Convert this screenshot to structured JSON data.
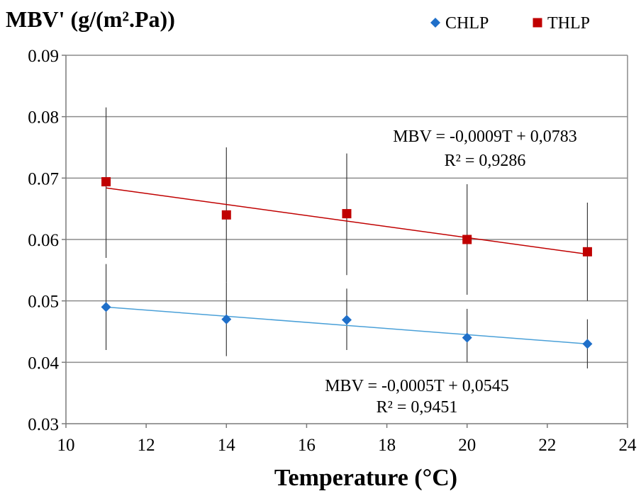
{
  "chart_data": {
    "type": "scatter",
    "ylabel": "MBV' (g/(m².Pa))",
    "xlabel": "Temperature (°C)",
    "xlim": [
      10,
      24
    ],
    "ylim": [
      0.03,
      0.09
    ],
    "x_ticks": [
      "10",
      "12",
      "14",
      "16",
      "18",
      "20",
      "22",
      "24"
    ],
    "y_ticks": [
      "0.03",
      "0.04",
      "0.05",
      "0.06",
      "0.07",
      "0.08",
      "0.09"
    ],
    "grid": "horizontal",
    "legend_position": "top-right",
    "series": [
      {
        "name": "CHLP",
        "marker": "diamond",
        "color": "#1f6fc9",
        "points": [
          {
            "x": 11,
            "y": 0.049,
            "err_low": 0.042,
            "err_high": 0.056
          },
          {
            "x": 14,
            "y": 0.047,
            "err_low": 0.041,
            "err_high": 0.053
          },
          {
            "x": 17,
            "y": 0.0469,
            "err_low": 0.042,
            "err_high": 0.052
          },
          {
            "x": 20,
            "y": 0.044,
            "err_low": 0.04,
            "err_high": 0.0487
          },
          {
            "x": 23,
            "y": 0.043,
            "err_low": 0.039,
            "err_high": 0.047
          }
        ],
        "trendline": {
          "slope": -0.0005,
          "intercept": 0.0545,
          "x_range": [
            11,
            23
          ],
          "color": "#4aa0d8"
        },
        "equation": "MBV = -0,0005T + 0,0545",
        "r2": "R² = 0,9451"
      },
      {
        "name": "THLP",
        "marker": "square",
        "color": "#c00000",
        "points": [
          {
            "x": 11,
            "y": 0.0694,
            "err_low": 0.057,
            "err_high": 0.0815
          },
          {
            "x": 14,
            "y": 0.064,
            "err_low": 0.053,
            "err_high": 0.075
          },
          {
            "x": 17,
            "y": 0.0642,
            "err_low": 0.0542,
            "err_high": 0.074
          },
          {
            "x": 20,
            "y": 0.06,
            "err_low": 0.051,
            "err_high": 0.069
          },
          {
            "x": 23,
            "y": 0.058,
            "err_low": 0.05,
            "err_high": 0.066
          }
        ],
        "trendline": {
          "slope": -0.0009,
          "intercept": 0.0783,
          "x_range": [
            11,
            23
          ],
          "color": "#c00000"
        },
        "equation": "MBV = -0,0009T + 0,0783",
        "r2": "R² = 0,9286"
      }
    ]
  }
}
